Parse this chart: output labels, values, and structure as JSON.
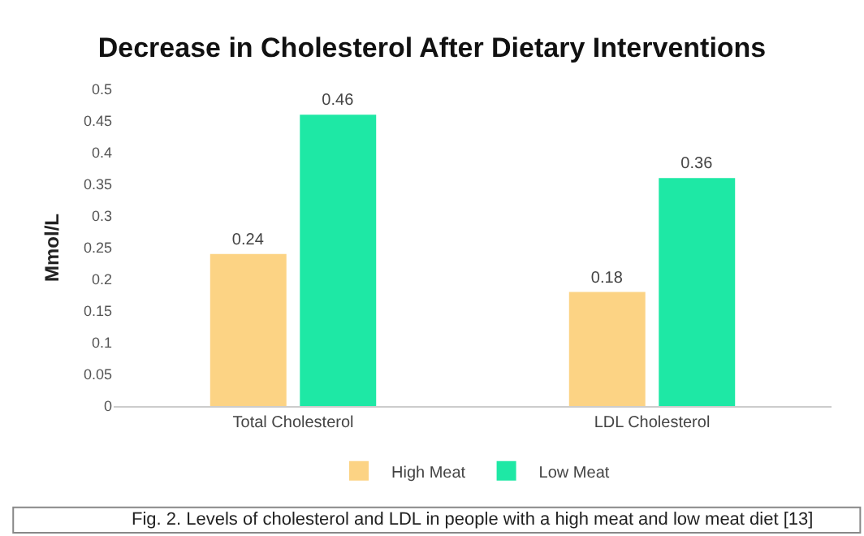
{
  "chart_data": {
    "type": "bar",
    "title": "Decrease in Cholesterol After Dietary Interventions",
    "ylabel": "Mmol/L",
    "categories": [
      "Total Cholesterol",
      "LDL Cholesterol"
    ],
    "series": [
      {
        "name": "High Meat",
        "color": "#fcd384",
        "values": [
          0.24,
          0.18
        ]
      },
      {
        "name": "Low Meat",
        "color": "#1ee8a5",
        "values": [
          0.46,
          0.36
        ]
      }
    ],
    "ylim": [
      0,
      0.5
    ],
    "yticks": [
      0,
      0.05,
      0.1,
      0.15,
      0.2,
      0.25,
      0.3,
      0.35,
      0.4,
      0.45,
      0.5
    ],
    "grid": false,
    "legend": "bottom",
    "data_labels": true,
    "annotations": [
      "Fig. 2. Levels of cholesterol and LDL in people with a high meat and low meat diet [13]"
    ]
  }
}
